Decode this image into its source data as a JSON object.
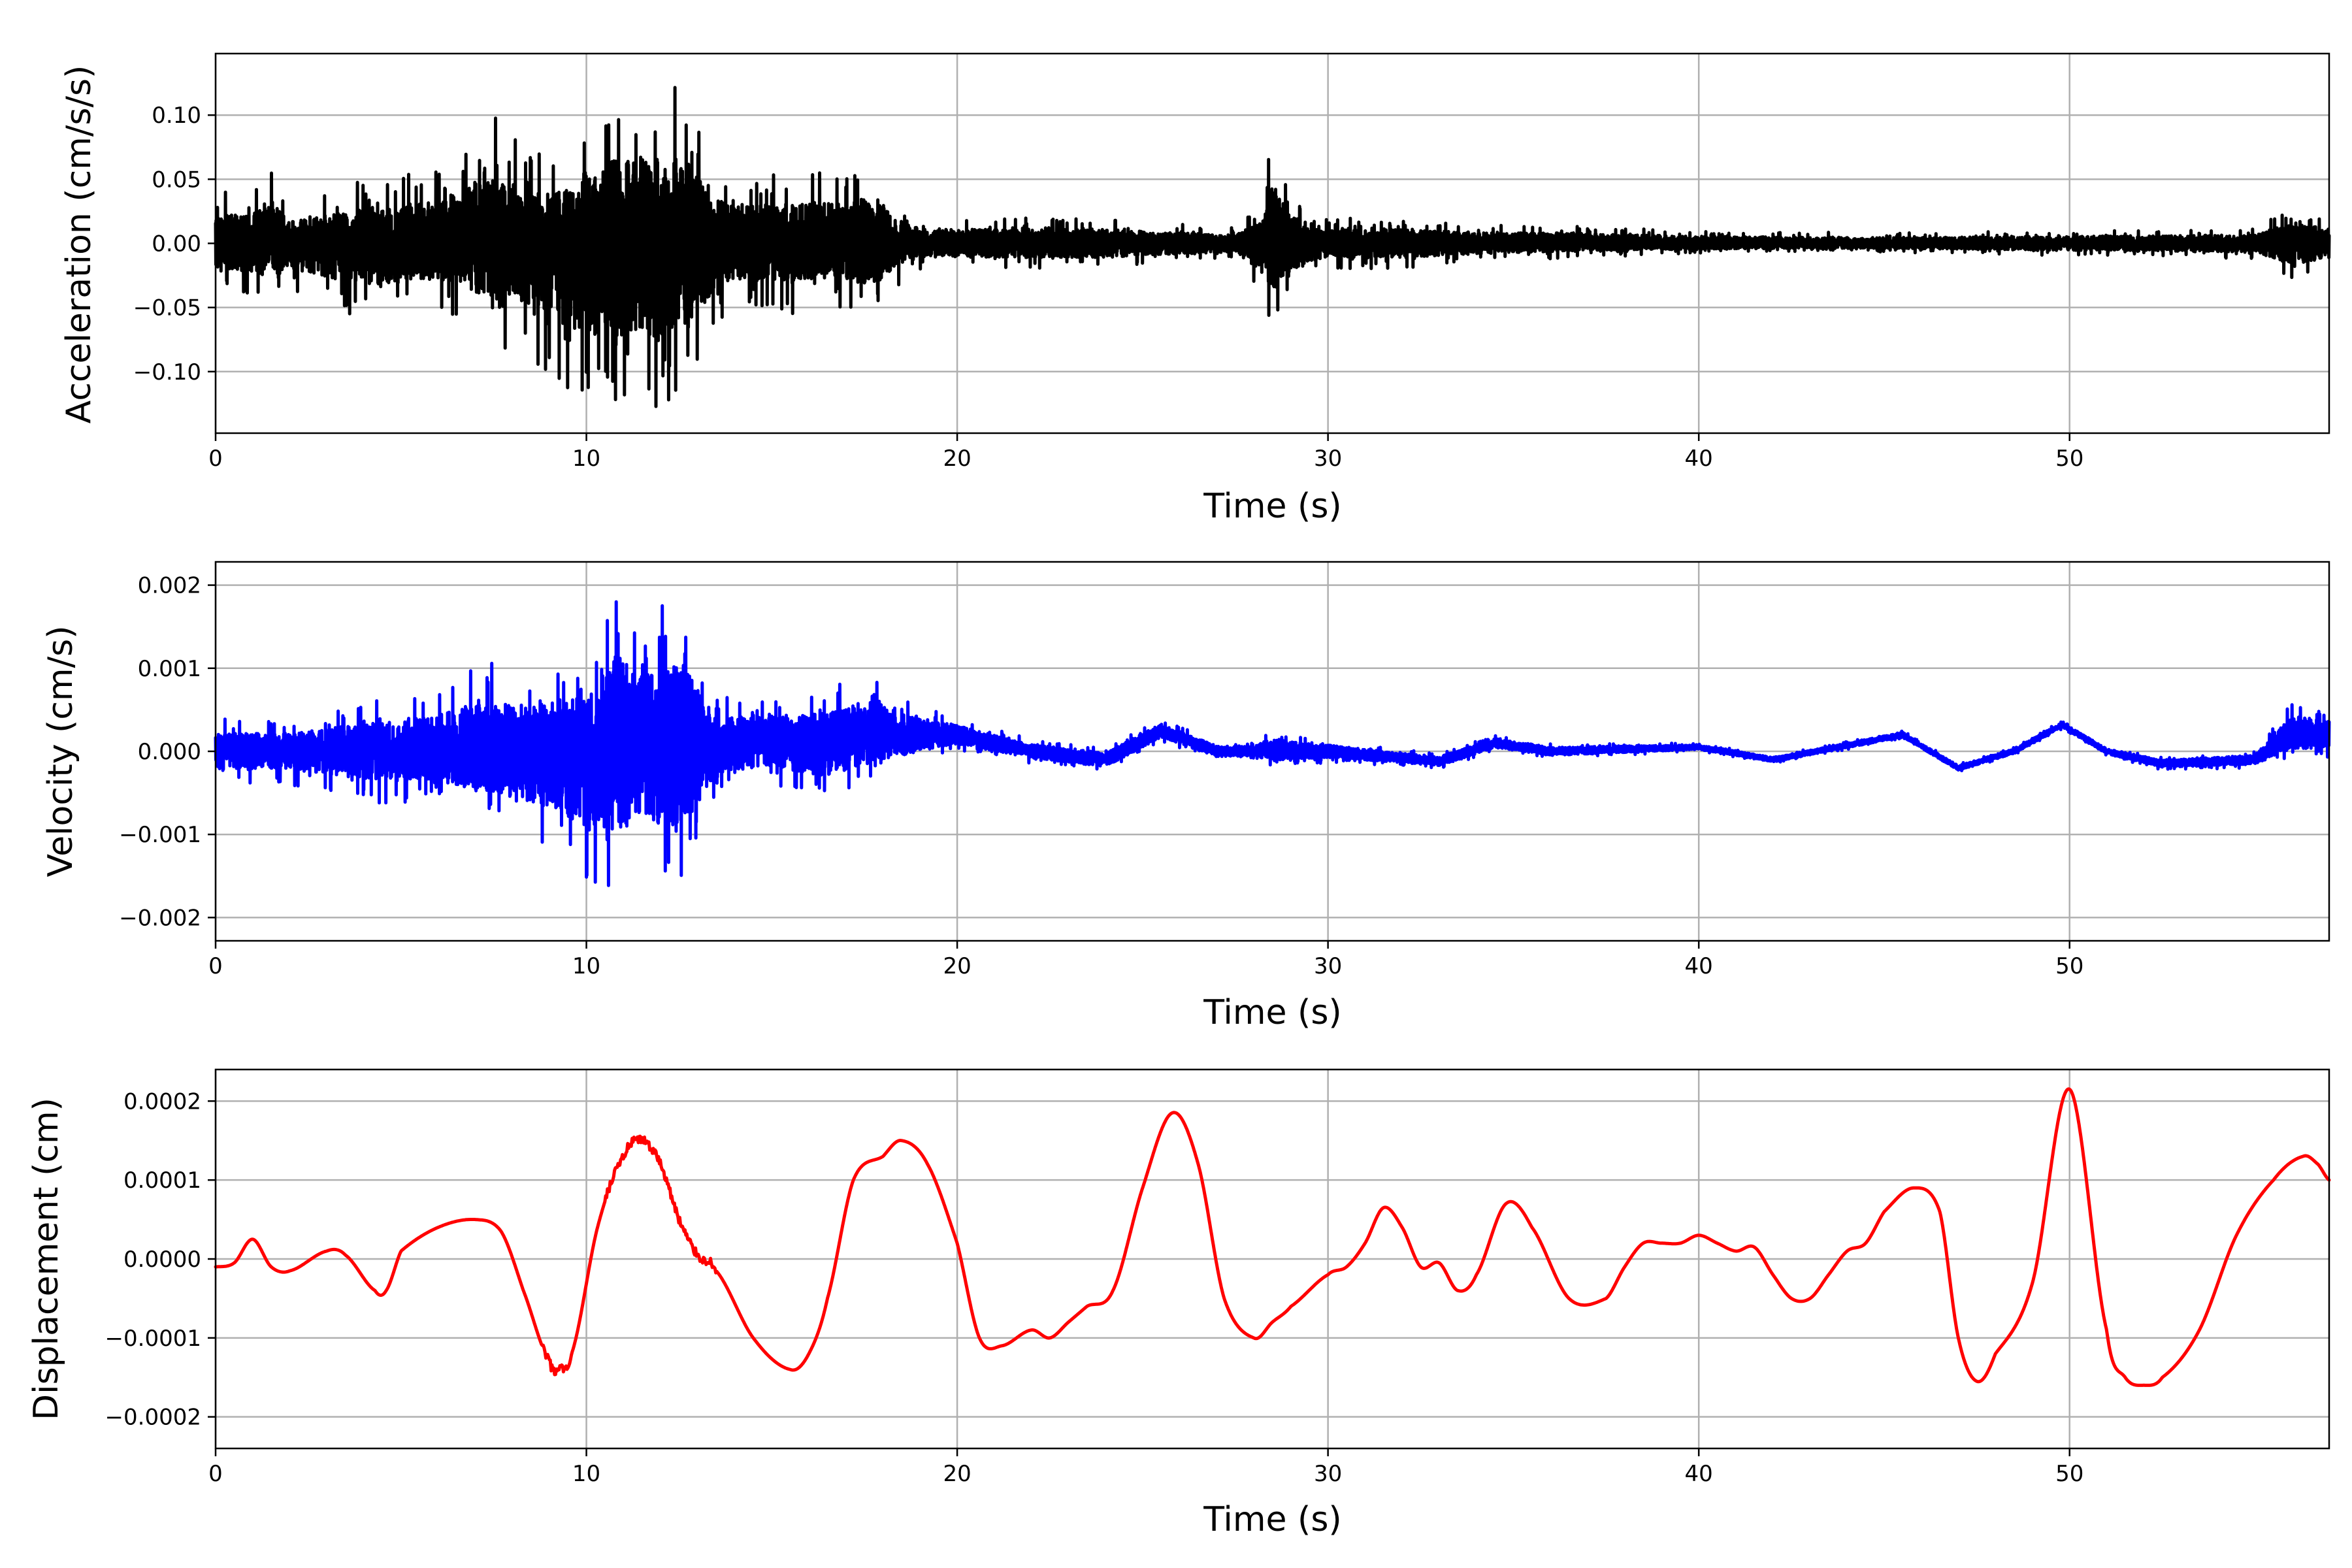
{
  "chart_data": [
    {
      "type": "line",
      "ylabel": "Acceleration (cm/s/s)",
      "xlabel": "Time (s)",
      "xlim": [
        0,
        57
      ],
      "ylim": [
        -0.148,
        0.148
      ],
      "xticks": [
        0,
        10,
        20,
        30,
        40,
        50
      ],
      "xtick_labels": [
        "0",
        "10",
        "20",
        "30",
        "40",
        "50"
      ],
      "yticks": [
        -0.1,
        -0.05,
        0.0,
        0.05,
        0.1
      ],
      "ytick_labels": [
        "−0.10",
        "−0.05",
        "0.00",
        "0.05",
        "0.10"
      ],
      "grid": true,
      "series": [
        {
          "color": "#000000",
          "envelope": {
            "x": [
              0,
              1,
              1.5,
              2,
              4,
              6,
              7.5,
              8.5,
              9.5,
              10.3,
              10.8,
              11.5,
              12.3,
              12.8,
              13.5,
              14.5,
              15.5,
              17,
              17.8,
              18.2,
              19,
              20,
              22,
              24,
              26,
              27.5,
              28.2,
              28.5,
              29,
              29.5,
              30,
              32,
              34,
              36,
              40,
              45,
              50,
              55,
              56,
              57
            ],
            "upper": [
              0.04,
              0.04,
              0.065,
              0.03,
              0.05,
              0.06,
              0.1,
              0.07,
              0.08,
              0.12,
              0.13,
              0.12,
              0.125,
              0.12,
              0.06,
              0.055,
              0.06,
              0.055,
              0.07,
              0.04,
              0.02,
              0.02,
              0.02,
              0.02,
              0.015,
              0.012,
              0.03,
              0.085,
              0.04,
              0.03,
              0.02,
              0.02,
              0.015,
              0.015,
              0.01,
              0.008,
              0.01,
              0.012,
              0.03,
              0.02
            ],
            "lower": [
              -0.04,
              -0.04,
              -0.05,
              -0.035,
              -0.06,
              -0.05,
              -0.08,
              -0.09,
              -0.12,
              -0.13,
              -0.135,
              -0.13,
              -0.135,
              -0.12,
              -0.06,
              -0.05,
              -0.055,
              -0.05,
              -0.065,
              -0.04,
              -0.02,
              -0.02,
              -0.02,
              -0.02,
              -0.015,
              -0.012,
              -0.04,
              -0.065,
              -0.04,
              -0.025,
              -0.02,
              -0.02,
              -0.015,
              -0.012,
              -0.008,
              -0.007,
              -0.01,
              -0.012,
              -0.03,
              -0.02
            ]
          }
        }
      ]
    },
    {
      "type": "line",
      "ylabel": "Velocity (cm/s)",
      "xlabel": "Time (s)",
      "xlim": [
        0,
        57
      ],
      "ylim": [
        -0.00228,
        0.00228
      ],
      "xticks": [
        0,
        10,
        20,
        30,
        40,
        50
      ],
      "xtick_labels": [
        "0",
        "10",
        "20",
        "30",
        "40",
        "50"
      ],
      "yticks": [
        -0.002,
        -0.001,
        0.0,
        0.001,
        0.002
      ],
      "ytick_labels": [
        "−0.002",
        "−0.001",
        "0.000",
        "0.001",
        "0.002"
      ],
      "grid": true,
      "series": [
        {
          "color": "#0000ff",
          "trend": {
            "x": [
              0,
              10,
              20,
              22,
              24,
              25.5,
              27,
              30,
              33,
              34.5,
              36,
              40,
              42,
              45.5,
              47,
              48.5,
              49.8,
              51,
              52.5,
              55,
              56,
              57
            ],
            "y": [
              0,
              0,
              0.0002,
              0.0,
              -0.0001,
              0.00025,
              0.0,
              0.0,
              -0.00012,
              0.0001,
              0.0,
              5e-05,
              -0.0001,
              0.0002,
              -0.0002,
              0.0,
              0.00032,
              0.0,
              -0.00015,
              -0.0001,
              0.0002,
              0.0002
            ]
          },
          "envelope": {
            "x": [
              0,
              2,
              4,
              6,
              7.5,
              8.5,
              9.5,
              10.3,
              10.8,
              11.5,
              12.3,
              12.8,
              13.5,
              15,
              16.5,
              17.8,
              18.5,
              20,
              22,
              25,
              28,
              28.5,
              29.5,
              32,
              35,
              40,
              45,
              50,
              55,
              56,
              57
            ],
            "upper": [
              0.0004,
              0.0004,
              0.0006,
              0.0008,
              0.0011,
              0.001,
              0.0011,
              0.0013,
              0.0021,
              0.0016,
              0.0018,
              0.0016,
              0.0006,
              0.0006,
              0.0006,
              0.0009,
              0.0005,
              0.0002,
              0.00015,
              0.00015,
              0.0001,
              0.0003,
              0.00015,
              0.0001,
              0.0001,
              5e-05,
              5e-05,
              5e-05,
              0.0001,
              0.0004,
              0.0003
            ],
            "lower": [
              -0.0004,
              -0.0004,
              -0.0006,
              -0.0007,
              -0.0009,
              -0.0011,
              -0.0015,
              -0.0017,
              -0.0018,
              -0.0015,
              -0.0018,
              -0.0015,
              -0.0006,
              -0.0005,
              -0.0008,
              -0.0005,
              -0.0004,
              -0.0002,
              -0.00015,
              -0.00015,
              -0.0001,
              -0.0002,
              -0.00015,
              -0.0001,
              -0.0001,
              -5e-05,
              -5e-05,
              -5e-05,
              -0.0001,
              -0.0003,
              -0.0003
            ]
          }
        }
      ]
    },
    {
      "type": "line",
      "ylabel": "Displacement (cm)",
      "xlabel": "Time (s)",
      "xlim": [
        0,
        57
      ],
      "ylim": [
        -0.00024,
        0.00024
      ],
      "xticks": [
        0,
        10,
        20,
        30,
        40,
        50
      ],
      "xtick_labels": [
        "0",
        "10",
        "20",
        "30",
        "40",
        "50"
      ],
      "yticks": [
        -0.0002,
        -0.0001,
        0.0,
        0.0001,
        0.0002
      ],
      "ytick_labels": [
        "−0.0002",
        "−0.0001",
        "0.0000",
        "0.0001",
        "0.0002"
      ],
      "grid": true,
      "series": [
        {
          "color": "#ff0000",
          "x": [
            0,
            0.5,
            1.0,
            1.5,
            2.0,
            3.0,
            3.5,
            4.3,
            4.6,
            5.0,
            6.0,
            7.0,
            7.7,
            8.3,
            9.0,
            9.3,
            9.6,
            10.3,
            11.0,
            11.5,
            12.0,
            12.5,
            13.0,
            13.5,
            14.5,
            15.5,
            16.0,
            16.5,
            17.2,
            18.0,
            18.5,
            19.2,
            20.0,
            20.6,
            21.2,
            22.0,
            22.5,
            23.0,
            23.5,
            24.2,
            25.0,
            25.8,
            26.5,
            27.2,
            28.0,
            28.5,
            29.0,
            30.0,
            30.5,
            31.0,
            31.5,
            32.0,
            32.5,
            33.0,
            33.5,
            34.0,
            34.8,
            35.5,
            36.5,
            37.5,
            38.0,
            38.5,
            39.0,
            39.5,
            40.0,
            40.5,
            41.0,
            41.5,
            42.0,
            42.5,
            43.0,
            43.5,
            44.0,
            44.5,
            45.0,
            45.8,
            46.5,
            47.0,
            47.5,
            48.0,
            49.0,
            50.0,
            51.0,
            51.5,
            52.0,
            52.5,
            53.5,
            54.5,
            55.5,
            56.3,
            56.7,
            57.0
          ],
          "y": [
            -1e-05,
            -5e-06,
            2.5e-05,
            -1e-05,
            -1.5e-05,
            1e-05,
            5e-06,
            -4e-05,
            -4e-05,
            1e-05,
            4e-05,
            5e-05,
            3.5e-05,
            -4e-05,
            -0.00013,
            -0.00014,
            -0.00012,
            4e-05,
            0.00013,
            0.00015,
            0.00012,
            5e-05,
            5e-06,
            -1.5e-05,
            -0.0001,
            -0.00014,
            -0.00012,
            -5e-05,
            0.0001,
            0.00013,
            0.00015,
            0.00012,
            2e-05,
            -0.0001,
            -0.00011,
            -9e-05,
            -0.0001,
            -8e-05,
            -6e-05,
            -4e-05,
            9e-05,
            0.000185,
            0.00012,
            -5e-05,
            -0.0001,
            -8e-05,
            -6e-05,
            -2e-05,
            -1e-05,
            2e-05,
            6.5e-05,
            4e-05,
            -1e-05,
            -5e-06,
            -4e-05,
            -2e-05,
            7e-05,
            4e-05,
            -5e-05,
            -5e-05,
            -1e-05,
            2e-05,
            2e-05,
            2e-05,
            3e-05,
            2e-05,
            1e-05,
            1.5e-05,
            -2e-05,
            -5e-05,
            -5e-05,
            -2e-05,
            1e-05,
            2e-05,
            6e-05,
            9e-05,
            6e-05,
            -0.0001,
            -0.000155,
            -0.00012,
            -3e-05,
            0.000215,
            -9e-05,
            -0.00015,
            -0.00016,
            -0.00015,
            -9e-05,
            3e-05,
            0.0001,
            0.00013,
            0.00012,
            0.0001
          ]
        }
      ]
    }
  ]
}
